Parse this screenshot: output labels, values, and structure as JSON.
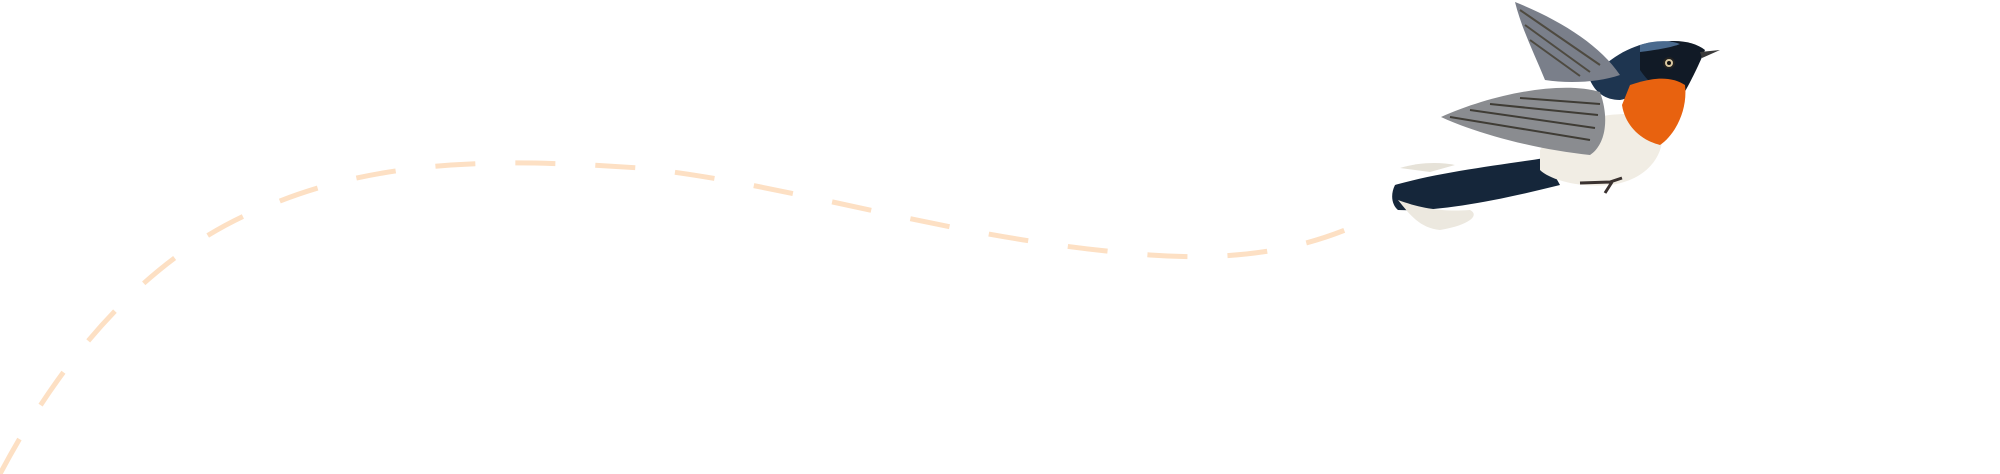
{
  "colors": {
    "background": "#ffffff",
    "path": "#fde0c4",
    "bird_throat": "#e8620f",
    "bird_back": "#1e3550",
    "bird_wing": "#7d8088",
    "bird_belly": "#f1ede4"
  },
  "illustration": {
    "icon": "bird-icon"
  }
}
